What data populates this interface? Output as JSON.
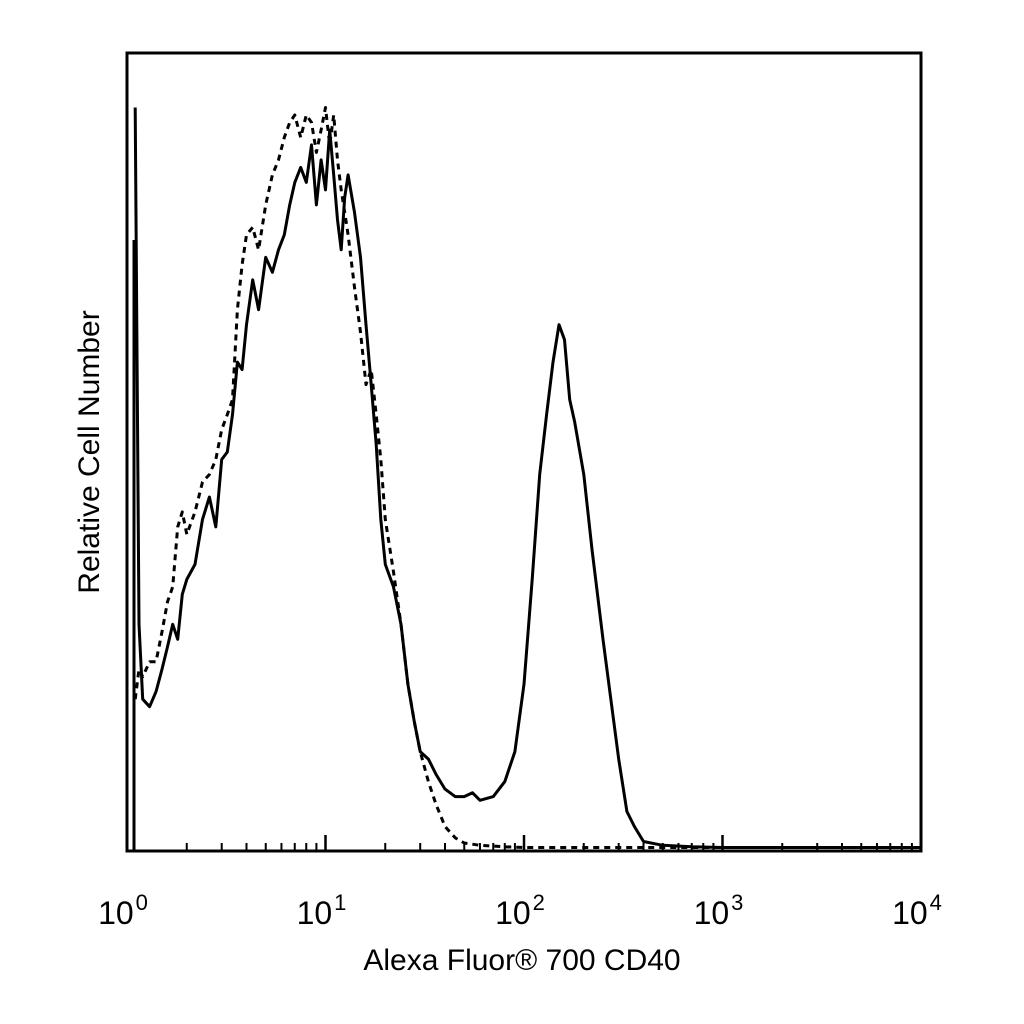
{
  "chart_data": {
    "type": "line",
    "title": "",
    "xlabel": "Alexa Fluor® 700 CD40",
    "ylabel": "Relative Cell Number",
    "x_scale": "log",
    "xlim": [
      1,
      10000
    ],
    "ylim": [
      0,
      100
    ],
    "x_ticks": [
      {
        "value": 1,
        "base": "10",
        "exp": "0"
      },
      {
        "value": 10,
        "base": "10",
        "exp": "1"
      },
      {
        "value": 100,
        "base": "10",
        "exp": "2"
      },
      {
        "value": 1000,
        "base": "10",
        "exp": "3"
      },
      {
        "value": 10000,
        "base": "10",
        "exp": "4"
      }
    ],
    "y_ticks": [],
    "grid": false,
    "legend": "none",
    "series": [
      {
        "style": "solid",
        "color": "#000000",
        "x": [
          1.1,
          1.15,
          1.2,
          1.3,
          1.4,
          1.5,
          1.6,
          1.7,
          1.8,
          1.9,
          2.0,
          2.2,
          2.4,
          2.6,
          2.8,
          3.0,
          3.2,
          3.4,
          3.6,
          3.8,
          4.0,
          4.3,
          4.6,
          5.0,
          5.4,
          5.8,
          6.2,
          6.6,
          7.0,
          7.5,
          8.0,
          8.5,
          9.0,
          9.5,
          10.0,
          10.5,
          11.0,
          11.5,
          12.0,
          12.5,
          13.0,
          14.0,
          15.0,
          16.0,
          17.0,
          18.0,
          19.0,
          20.0,
          22.0,
          24.0,
          26.0,
          28.0,
          30.0,
          33.0,
          36.0,
          40.0,
          45.0,
          50.0,
          55.0,
          60.0,
          70.0,
          80.0,
          90.0,
          100.0,
          110.0,
          120.0,
          130.0,
          140.0,
          150.0,
          160.0,
          170.0,
          180.0,
          200.0,
          220.0,
          250.0,
          280.0,
          300.0,
          330.0,
          360.0,
          400.0,
          500.0,
          700.0,
          1000.0,
          2000.0,
          5000.0,
          10000.0
        ],
        "values": [
          99,
          30,
          20,
          19,
          21,
          24,
          27,
          30,
          28,
          34,
          36,
          38,
          44,
          47,
          43,
          52,
          53,
          58,
          65,
          64,
          70,
          76,
          72,
          79,
          77,
          80,
          82,
          86,
          89,
          91,
          89,
          94,
          86,
          92,
          88,
          96,
          90,
          84,
          80,
          87,
          90,
          85,
          79,
          70,
          62,
          54,
          44,
          38,
          35,
          30,
          22,
          17,
          13,
          12,
          10,
          8,
          7,
          7,
          7.5,
          6.5,
          7,
          9,
          13,
          22,
          36,
          50,
          58,
          65,
          70,
          68,
          60,
          57,
          50,
          40,
          28,
          18,
          12,
          5,
          3,
          1,
          0.5,
          0.3,
          0.2,
          0.2,
          0.2,
          0.2
        ]
      },
      {
        "style": "dashed",
        "color": "#000000",
        "x": [
          1.1,
          1.15,
          1.2,
          1.3,
          1.4,
          1.5,
          1.6,
          1.7,
          1.8,
          1.9,
          2.0,
          2.2,
          2.4,
          2.6,
          2.8,
          3.0,
          3.2,
          3.4,
          3.6,
          3.8,
          4.0,
          4.3,
          4.6,
          5.0,
          5.4,
          5.8,
          6.2,
          6.6,
          7.0,
          7.5,
          8.0,
          8.5,
          9.0,
          9.5,
          10.0,
          10.5,
          11.0,
          11.5,
          12.0,
          12.5,
          13.0,
          14.0,
          15.0,
          16.0,
          17.0,
          18.0,
          19.0,
          20.0,
          22.0,
          24.0,
          26.0,
          28.0,
          30.0,
          33.0,
          36.0,
          40.0,
          45.0,
          50.0,
          60.0,
          80.0,
          100.0,
          150.0,
          300.0,
          1000.0,
          10000.0
        ],
        "values": [
          20,
          24,
          23,
          25,
          25,
          29,
          33,
          35,
          43,
          45,
          42,
          45,
          49,
          50,
          52,
          56,
          58,
          60,
          72,
          78,
          82,
          83,
          80,
          86,
          90,
          92,
          95,
          97,
          98,
          95,
          98,
          97,
          93,
          96,
          99,
          94,
          98,
          92,
          88,
          85,
          82,
          75,
          69,
          62,
          64,
          58,
          52,
          44,
          37,
          30,
          22,
          17,
          13,
          9,
          6,
          3,
          1.5,
          0.8,
          0.5,
          0.3,
          0.2,
          0.2,
          0.2,
          0.2,
          0.2
        ]
      }
    ]
  }
}
